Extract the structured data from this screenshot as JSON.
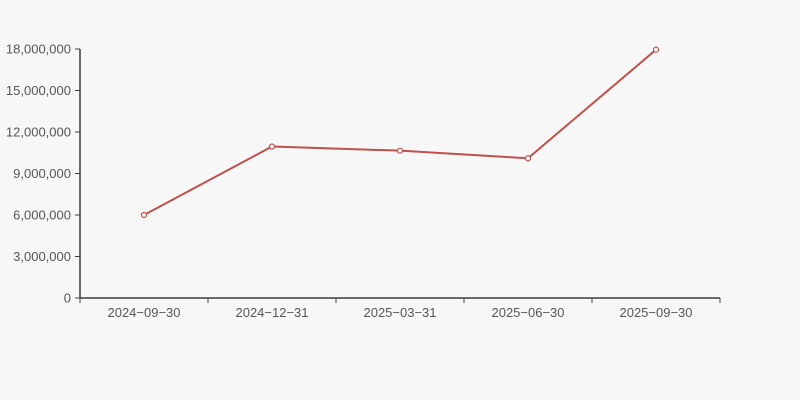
{
  "colors": {
    "background": "#f7f7f7",
    "axis": "#3c3c3c",
    "tick_label": "#565656",
    "series_line": "#c0504d",
    "marker_fill": "#fcfcfc"
  },
  "chart_data": {
    "type": "line",
    "categories": [
      "2024−09−30",
      "2024−12−31",
      "2025−03−31",
      "2025−06−30",
      "2025−09−30"
    ],
    "series": [
      {
        "name": "value",
        "values": [
          6000000,
          10950000,
          10650000,
          10100000,
          17950000
        ],
        "color": "#c0504d",
        "marker": "open-circle"
      }
    ],
    "title": "",
    "xlabel": "",
    "ylabel": "",
    "ylim": [
      0,
      18000000
    ],
    "y_tick_values": [
      0,
      3000000,
      6000000,
      9000000,
      12000000,
      15000000,
      18000000
    ],
    "y_tick_labels": [
      "0",
      "3,000,000",
      "6,000,000",
      "9,000,000",
      "12,000,000",
      "15,000,000",
      "18,000,000"
    ],
    "grid": "off",
    "legend": "none"
  }
}
